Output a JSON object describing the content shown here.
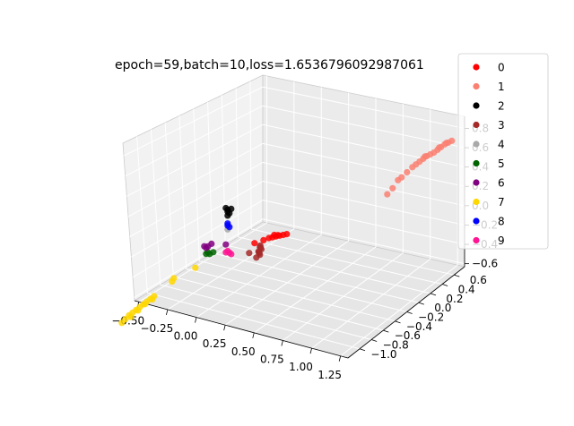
{
  "chart_data": {
    "type": "scatter",
    "projection": "3d",
    "title": "epoch=59,batch=10,loss=1.6536796092987061",
    "grid": true,
    "legend_placement": "top-right",
    "x_ticks": [
      "−0.50",
      "−0.25",
      "0.00",
      "0.25",
      "0.50",
      "0.75",
      "1.00",
      "1.25"
    ],
    "y_ticks": [
      "−1.0",
      "−0.8",
      "−0.6",
      "−0.4",
      "−0.2",
      "0.0",
      "0.2",
      "0.4",
      "0.6"
    ],
    "z_ticks": [
      "−0.6",
      "−0.4",
      "−0.2",
      "0.0",
      "0.2",
      "0.4",
      "0.6",
      "0.8"
    ],
    "xlim": [
      -0.6,
      1.4
    ],
    "ylim": [
      -1.1,
      0.7
    ],
    "zlim": [
      -0.7,
      0.9
    ],
    "series": [
      {
        "name": "0",
        "color": "#ff0000",
        "points": [
          [
            0.3,
            0.0,
            0.22
          ],
          [
            0.32,
            0.0,
            0.22
          ],
          [
            0.34,
            0.0,
            0.22
          ],
          [
            0.36,
            0.0,
            0.22
          ],
          [
            0.38,
            0.0,
            0.22
          ],
          [
            0.28,
            0.0,
            0.22
          ],
          [
            0.25,
            0.0,
            0.21
          ],
          [
            0.33,
            0.0,
            0.23
          ],
          [
            0.31,
            0.0,
            0.24
          ],
          [
            0.2,
            0.0,
            0.2
          ]
        ]
      },
      {
        "name": "1",
        "color": "#fa8072",
        "points": [
          [
            1.3,
            0.0,
            0.8
          ],
          [
            1.28,
            0.0,
            0.79
          ],
          [
            1.26,
            0.0,
            0.78
          ],
          [
            1.24,
            0.0,
            0.76
          ],
          [
            1.22,
            0.0,
            0.74
          ],
          [
            1.2,
            0.0,
            0.72
          ],
          [
            1.18,
            0.0,
            0.71
          ],
          [
            1.16,
            0.0,
            0.7
          ],
          [
            1.14,
            0.0,
            0.68
          ],
          [
            1.12,
            0.0,
            0.66
          ],
          [
            1.1,
            0.0,
            0.64
          ],
          [
            1.08,
            0.0,
            0.62
          ],
          [
            1.05,
            0.0,
            0.58
          ],
          [
            1.02,
            0.0,
            0.54
          ],
          [
            1.0,
            0.0,
            0.52
          ],
          [
            0.97,
            0.0,
            0.45
          ],
          [
            0.94,
            0.0,
            0.4
          ],
          [
            1.15,
            0.0,
            0.7
          ],
          [
            1.23,
            0.0,
            0.76
          ],
          [
            1.27,
            0.0,
            0.79
          ]
        ]
      },
      {
        "name": "2",
        "color": "#000000",
        "points": [
          [
            0.05,
            0.0,
            0.6
          ],
          [
            0.05,
            0.0,
            0.58
          ],
          [
            0.06,
            0.0,
            0.56
          ],
          [
            0.04,
            0.0,
            0.62
          ],
          [
            0.07,
            0.0,
            0.6
          ],
          [
            0.05,
            0.0,
            0.54
          ]
        ]
      },
      {
        "name": "3",
        "color": "#a52a2a",
        "points": [
          [
            0.35,
            -0.4,
            -0.1
          ],
          [
            0.36,
            -0.42,
            -0.12
          ],
          [
            0.37,
            -0.44,
            -0.15
          ],
          [
            0.36,
            -0.46,
            -0.18
          ],
          [
            0.37,
            -0.48,
            -0.21
          ],
          [
            0.38,
            -0.5,
            -0.24
          ],
          [
            0.36,
            -0.5,
            -0.26
          ],
          [
            0.38,
            -0.52,
            -0.22
          ],
          [
            0.34,
            -0.36,
            -0.06
          ],
          [
            0.2,
            -0.1,
            0.05
          ]
        ]
      },
      {
        "name": "4",
        "color": "#a9a9a9",
        "points": [
          [
            0.05,
            0.0,
            0.4
          ]
        ]
      },
      {
        "name": "5",
        "color": "#006400",
        "points": [
          [
            -0.07,
            0.0,
            0.2
          ],
          [
            -0.05,
            0.0,
            0.19
          ],
          [
            -0.03,
            0.0,
            0.2
          ],
          [
            -0.06,
            0.0,
            0.21
          ]
        ]
      },
      {
        "name": "6",
        "color": "#800080",
        "points": [
          [
            -0.08,
            0.0,
            0.28
          ],
          [
            -0.06,
            0.0,
            0.27
          ],
          [
            -0.04,
            0.0,
            0.29
          ],
          [
            -0.07,
            0.0,
            0.26
          ],
          [
            0.04,
            0.0,
            0.25
          ]
        ]
      },
      {
        "name": "7",
        "color": "#ffd700",
        "points": [
          [
            -0.45,
            -0.3,
            -0.5
          ],
          [
            -0.43,
            -0.3,
            -0.47
          ],
          [
            -0.41,
            -0.3,
            -0.44
          ],
          [
            -0.39,
            -0.3,
            -0.42
          ],
          [
            -0.37,
            -0.3,
            -0.4
          ],
          [
            -0.35,
            -0.3,
            -0.38
          ],
          [
            -0.33,
            -0.3,
            -0.36
          ],
          [
            -0.31,
            -0.3,
            -0.34
          ],
          [
            -0.29,
            -0.3,
            -0.32
          ],
          [
            -0.27,
            -0.3,
            -0.3
          ],
          [
            -0.4,
            -0.3,
            -0.46
          ],
          [
            -0.36,
            -0.3,
            -0.41
          ],
          [
            -0.32,
            -0.3,
            -0.36
          ],
          [
            -0.28,
            -0.3,
            -0.33
          ],
          [
            -0.2,
            -0.2,
            -0.13
          ],
          [
            -0.19,
            -0.2,
            -0.1
          ],
          [
            -0.1,
            -0.1,
            0.02
          ]
        ]
      },
      {
        "name": "8",
        "color": "#0000ff",
        "points": [
          [
            0.05,
            0.0,
            0.46
          ],
          [
            0.05,
            0.0,
            0.44
          ],
          [
            0.06,
            0.0,
            0.42
          ]
        ]
      },
      {
        "name": "9",
        "color": "#ff1493",
        "points": [
          [
            0.05,
            0.0,
            0.18
          ],
          [
            0.06,
            0.0,
            0.16
          ],
          [
            0.07,
            0.0,
            0.14
          ],
          [
            0.04,
            0.0,
            0.17
          ]
        ]
      }
    ]
  }
}
